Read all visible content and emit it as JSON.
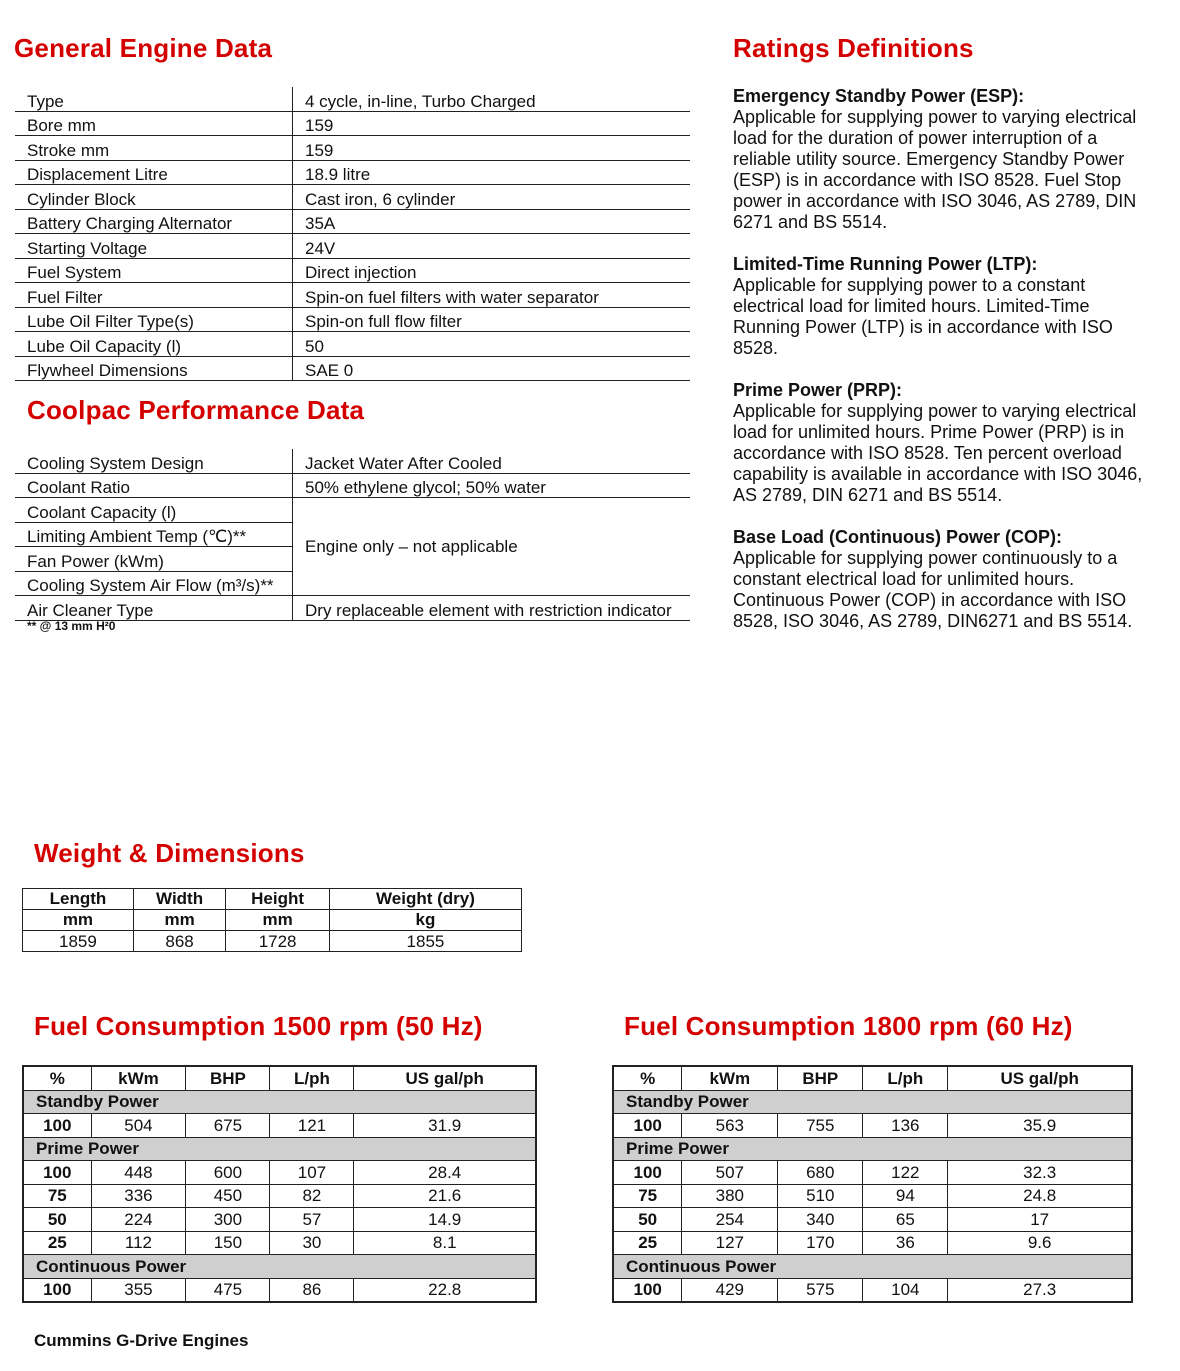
{
  "general": {
    "title": "General Engine Data",
    "rows": [
      [
        "Type",
        "4 cycle, in-line, Turbo Charged"
      ],
      [
        "Bore mm",
        "159"
      ],
      [
        "Stroke mm",
        "159"
      ],
      [
        "Displacement Litre",
        "18.9 litre"
      ],
      [
        "Cylinder Block",
        "Cast iron, 6 cylinder"
      ],
      [
        "Battery Charging Alternator",
        "35A"
      ],
      [
        "Starting Voltage",
        "24V"
      ],
      [
        "Fuel System",
        "Direct injection"
      ],
      [
        "Fuel Filter",
        "Spin-on fuel filters with water separator"
      ],
      [
        "Lube Oil Filter Type(s)",
        "Spin-on full flow filter"
      ],
      [
        "Lube Oil Capacity (l)",
        "50"
      ],
      [
        "Flywheel Dimensions",
        "SAE 0"
      ]
    ]
  },
  "coolpac": {
    "title": "Coolpac Performance Data",
    "rows": [
      [
        "Cooling System Design",
        "Jacket Water After Cooled"
      ],
      [
        "Coolant Ratio",
        "50% ethylene glycol; 50% water"
      ],
      [
        "Coolant Capacity (l)",
        ""
      ],
      [
        "Limiting Ambient Temp (℃)**",
        ""
      ],
      [
        "Fan Power (kWm)",
        ""
      ],
      [
        "Cooling System Air Flow (m³/s)**",
        ""
      ],
      [
        "Air Cleaner Type",
        "Dry replaceable element with restriction indicator"
      ]
    ],
    "merged_value": "Engine only – not applicable",
    "footnote": "** @ 13 mm H²0"
  },
  "ratings": {
    "title": "Ratings Definitions",
    "items": [
      {
        "title": "Emergency Standby Power (ESP):",
        "text": "Applicable for supplying power to varying electrical load for the duration of power interruption of a reliable utility source. Emergency Standby Power (ESP) is in accordance with ISO 8528. Fuel Stop power in accordance with ISO 3046, AS 2789, DIN 6271 and BS 5514."
      },
      {
        "title": "Limited-Time Running Power (LTP):",
        "text": "Applicable for supplying power to a constant electrical load for limited hours. Limited-Time Running Power (LTP) is in accordance with ISO 8528."
      },
      {
        "title": "Prime Power (PRP):",
        "text": "Applicable for supplying power to varying electrical load for unlimited hours. Prime Power (PRP) is in accordance with ISO 8528. Ten percent overload capability is available in accordance with ISO 3046, AS 2789, DIN 6271 and BS 5514."
      },
      {
        "title": "Base Load (Continuous) Power (COP):",
        "text": "Applicable for supplying power continuously to a constant electrical load for unlimited hours. Continuous Power (COP) in accordance with ISO 8528, ISO 3046, AS 2789, DIN6271 and BS 5514."
      }
    ]
  },
  "weight": {
    "title": "Weight & Dimensions",
    "headers": [
      "Length",
      "Width",
      "Height",
      "Weight (dry)"
    ],
    "units": [
      "mm",
      "mm",
      "mm",
      "kg"
    ],
    "values": [
      "1859",
      "868",
      "1728",
      "1855"
    ]
  },
  "fuel": [
    {
      "title": "Fuel Consumption 1500 rpm (50 Hz)",
      "headers": [
        "%",
        "kWm",
        "BHP",
        "L/ph",
        "US gal/ph"
      ],
      "sections": [
        {
          "name": "Standby Power",
          "rows": [
            [
              "100",
              "504",
              "675",
              "121",
              "31.9"
            ]
          ]
        },
        {
          "name": "Prime Power",
          "rows": [
            [
              "100",
              "448",
              "600",
              "107",
              "28.4"
            ],
            [
              "75",
              "336",
              "450",
              "82",
              "21.6"
            ],
            [
              "50",
              "224",
              "300",
              "57",
              "14.9"
            ],
            [
              "25",
              "112",
              "150",
              "30",
              "8.1"
            ]
          ]
        },
        {
          "name": "Continuous Power",
          "rows": [
            [
              "100",
              "355",
              "475",
              "86",
              "22.8"
            ]
          ]
        }
      ]
    },
    {
      "title": "Fuel Consumption 1800 rpm (60 Hz)",
      "headers": [
        "%",
        "kWm",
        "BHP",
        "L/ph",
        "US gal/ph"
      ],
      "sections": [
        {
          "name": "Standby Power",
          "rows": [
            [
              "100",
              "563",
              "755",
              "136",
              "35.9"
            ]
          ]
        },
        {
          "name": "Prime Power",
          "rows": [
            [
              "100",
              "507",
              "680",
              "122",
              "32.3"
            ],
            [
              "75",
              "380",
              "510",
              "94",
              "24.8"
            ],
            [
              "50",
              "254",
              "340",
              "65",
              "17"
            ],
            [
              "25",
              "127",
              "170",
              "36",
              "9.6"
            ]
          ]
        },
        {
          "name": "Continuous Power",
          "rows": [
            [
              "100",
              "429",
              "575",
              "104",
              "27.3"
            ]
          ]
        }
      ]
    }
  ],
  "footer": "Cummins G-Drive Engines",
  "colors": {
    "heading": "#d40000",
    "section_fill": "#cfcfcf"
  }
}
